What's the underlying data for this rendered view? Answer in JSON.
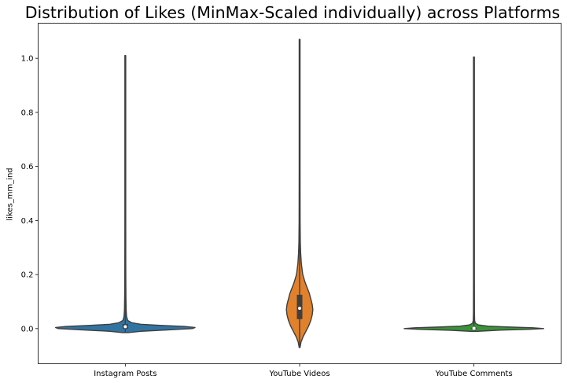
{
  "chart_data": {
    "type": "violin",
    "title": "Distribution of Likes (MinMax-Scaled individually) across Platforms",
    "xlabel": "",
    "ylabel": "likes_mm_ind",
    "ylim": [
      -0.13,
      1.13
    ],
    "yticks": [
      0.0,
      0.2,
      0.4,
      0.6,
      0.8,
      1.0
    ],
    "ytick_labels": [
      "0.0",
      "0.2",
      "0.4",
      "0.6",
      "0.8",
      "1.0"
    ],
    "grid": false,
    "categories": [
      "Instagram Posts",
      "YouTube Videos",
      "YouTube Comments"
    ],
    "series": [
      {
        "color": "#3274a1",
        "range": [
          -0.015,
          1.01
        ],
        "box": {
          "q1": 0.0,
          "median": 0.007,
          "q3": 0.017
        },
        "density": [
          [
            -0.015,
            0.04
          ],
          [
            -0.01,
            0.22
          ],
          [
            -0.005,
            0.6
          ],
          [
            0.0,
            0.96
          ],
          [
            0.004,
            1.0
          ],
          [
            0.008,
            0.85
          ],
          [
            0.012,
            0.5
          ],
          [
            0.016,
            0.22
          ],
          [
            0.022,
            0.09
          ],
          [
            0.03,
            0.035
          ],
          [
            0.045,
            0.018
          ],
          [
            0.07,
            0.012
          ],
          [
            0.12,
            0.009
          ],
          [
            0.2,
            0.007
          ],
          [
            0.4,
            0.006
          ],
          [
            1.01,
            0.006
          ]
        ]
      },
      {
        "color": "#e1812c",
        "range": [
          -0.07,
          1.07
        ],
        "box": {
          "q1": 0.035,
          "median": 0.075,
          "q3": 0.125
        },
        "density": [
          [
            -0.07,
            0.006
          ],
          [
            -0.05,
            0.02
          ],
          [
            -0.03,
            0.05
          ],
          [
            -0.01,
            0.09
          ],
          [
            0.01,
            0.13
          ],
          [
            0.03,
            0.16
          ],
          [
            0.05,
            0.18
          ],
          [
            0.07,
            0.19
          ],
          [
            0.09,
            0.18
          ],
          [
            0.11,
            0.16
          ],
          [
            0.13,
            0.14
          ],
          [
            0.15,
            0.11
          ],
          [
            0.17,
            0.08
          ],
          [
            0.2,
            0.045
          ],
          [
            0.24,
            0.025
          ],
          [
            0.28,
            0.015
          ],
          [
            0.32,
            0.01
          ],
          [
            0.4,
            0.007
          ],
          [
            0.6,
            0.006
          ],
          [
            1.07,
            0.006
          ]
        ]
      },
      {
        "color": "#3a923a",
        "range": [
          -0.01,
          1.005
        ],
        "box": {
          "q1": -0.001,
          "median": 0.001,
          "q3": 0.003
        },
        "density": [
          [
            -0.01,
            0.05
          ],
          [
            -0.006,
            0.35
          ],
          [
            -0.003,
            0.78
          ],
          [
            0.0,
            1.0
          ],
          [
            0.003,
            0.85
          ],
          [
            0.006,
            0.48
          ],
          [
            0.009,
            0.2
          ],
          [
            0.014,
            0.06
          ],
          [
            0.02,
            0.02
          ],
          [
            0.03,
            0.01
          ],
          [
            0.06,
            0.007
          ],
          [
            0.2,
            0.006
          ],
          [
            1.005,
            0.006
          ]
        ]
      }
    ]
  }
}
